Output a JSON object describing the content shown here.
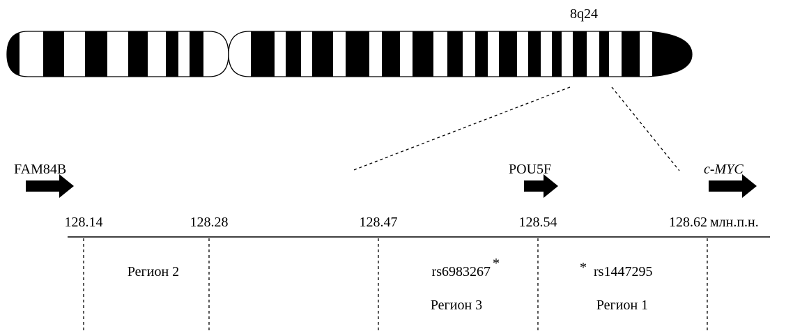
{
  "band": "8q24",
  "genes": [
    {
      "label": "FAM84B"
    },
    {
      "label": "POU5F"
    },
    {
      "label": "c-MYC"
    }
  ],
  "positions": [
    "128.14",
    "128.28",
    "128.47",
    "128.54",
    "128.62"
  ],
  "unit": "млн.п.н.",
  "regions": [
    {
      "label": "Регион 2"
    },
    {
      "label": "Регион 3",
      "snp": "rs6983267",
      "marker": "*"
    },
    {
      "label": "Регион 1",
      "snp": "rs1447295",
      "marker": "*"
    }
  ]
}
